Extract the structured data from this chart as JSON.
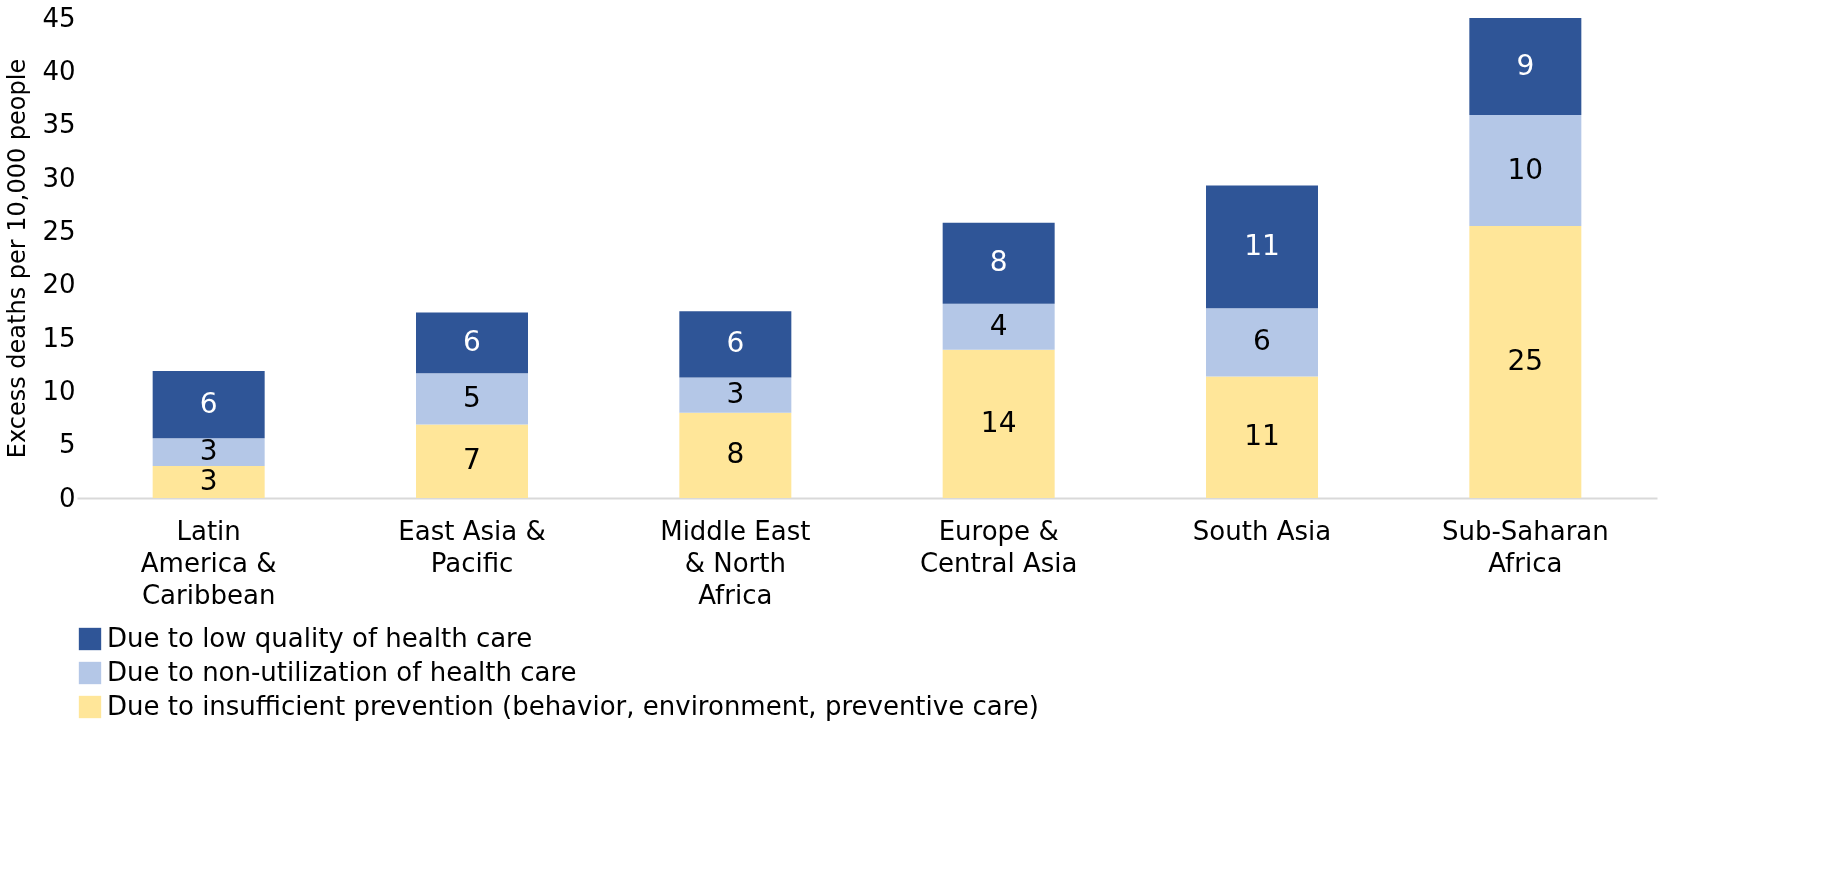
{
  "chart_data": {
    "type": "bar",
    "stacked": true,
    "ylabel": "Excess deaths per 10,000 people",
    "categories": [
      "Latin America & Caribbean",
      "East Asia & Pacific",
      "Middle East & North Africa",
      "Europe & Central Asia",
      "South Asia",
      "Sub-Saharan Africa"
    ],
    "series": [
      {
        "name": "Due to insufficient prevention (behavior, environment, preventive care)",
        "color": "#ffe699",
        "values": [
          3.0,
          6.9,
          8.0,
          13.9,
          11.4,
          25.5
        ],
        "value_labels": [
          "3",
          "7",
          "8",
          "14",
          "11",
          "25"
        ]
      },
      {
        "name": "Due to non-utilization of health care",
        "color": "#b4c7e7",
        "values": [
          2.6,
          4.8,
          3.3,
          4.3,
          6.4,
          10.4
        ],
        "value_labels": [
          "3",
          "5",
          "3",
          "4",
          "6",
          "10"
        ]
      },
      {
        "name": "Due to low quality of health care",
        "color": "#2f5597",
        "values": [
          6.3,
          5.7,
          6.2,
          7.6,
          11.5,
          9.1
        ],
        "value_labels": [
          "6",
          "6",
          "6",
          "8",
          "11",
          "9"
        ]
      }
    ],
    "ylim": [
      0,
      45
    ],
    "yticks": [
      0,
      5,
      10,
      15,
      20,
      25,
      30,
      35,
      40,
      45
    ],
    "grid": false,
    "legend": "bottom"
  }
}
